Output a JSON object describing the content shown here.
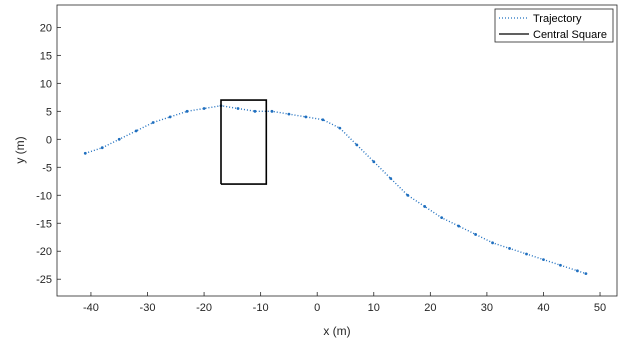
{
  "chart_data": {
    "type": "line",
    "xlabel": "x (m)",
    "ylabel": "y (m)",
    "xlim": [
      -46,
      53
    ],
    "ylim": [
      -28,
      24
    ],
    "xticks": [
      -40,
      -30,
      -20,
      -10,
      0,
      10,
      20,
      30,
      40,
      50
    ],
    "yticks": [
      -25,
      -20,
      -15,
      -10,
      -5,
      0,
      5,
      10,
      15,
      20
    ],
    "grid": false,
    "legend_position": "top-right",
    "colors": {
      "trajectory": "#1f6fbf",
      "square": "#000000"
    },
    "series": [
      {
        "name": "Trajectory",
        "style": "dotted",
        "x": [
          -41,
          -38,
          -35,
          -32,
          -29,
          -26,
          -23,
          -20,
          -17,
          -14,
          -11,
          -8,
          -5,
          -2,
          1,
          4,
          7,
          10,
          13,
          16,
          19,
          22,
          25,
          28,
          31,
          34,
          37,
          40,
          43,
          46,
          47.5
        ],
        "y": [
          -2.5,
          -1.5,
          0,
          1.5,
          3,
          4,
          5,
          5.5,
          6,
          5.5,
          5,
          5,
          4.5,
          4,
          3.5,
          2,
          -1,
          -4,
          -7,
          -10,
          -12,
          -14,
          -15.5,
          -17,
          -18.5,
          -19.5,
          -20.5,
          -21.5,
          -22.5,
          -23.5,
          -24
        ]
      },
      {
        "name": "Central Square",
        "style": "solid",
        "x": [
          -17,
          -9,
          -9,
          -17,
          -17
        ],
        "y": [
          -8,
          -8,
          7,
          7,
          -8
        ]
      }
    ]
  }
}
